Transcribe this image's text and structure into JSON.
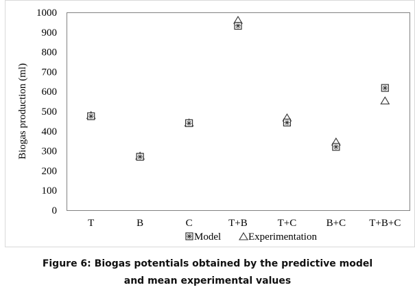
{
  "chart_data": {
    "type": "scatter",
    "title": "",
    "xlabel": "",
    "ylabel": "Biogas production (ml)",
    "categories": [
      "T",
      "B",
      "C",
      "T+B",
      "T+C",
      "B+C",
      "T+B+C"
    ],
    "ylim": [
      0,
      1000
    ],
    "yticks": [
      0,
      100,
      200,
      300,
      400,
      500,
      600,
      700,
      800,
      900,
      1000
    ],
    "grid": false,
    "legend_position": "bottom",
    "series": [
      {
        "name": "Model",
        "marker": "boxed-asterisk",
        "values": [
          475,
          270,
          440,
          932,
          443,
          320,
          618
        ]
      },
      {
        "name": "Experimentation",
        "marker": "triangle",
        "values": [
          477,
          272,
          440,
          958,
          465,
          343,
          551
        ]
      }
    ]
  },
  "caption": {
    "line1": "Figure 6: Biogas potentials obtained by the predictive model",
    "line2": "and mean experimental values"
  },
  "colors": {
    "marker": "#333333",
    "frame": "#d9d9d9",
    "axis": "#808080"
  }
}
